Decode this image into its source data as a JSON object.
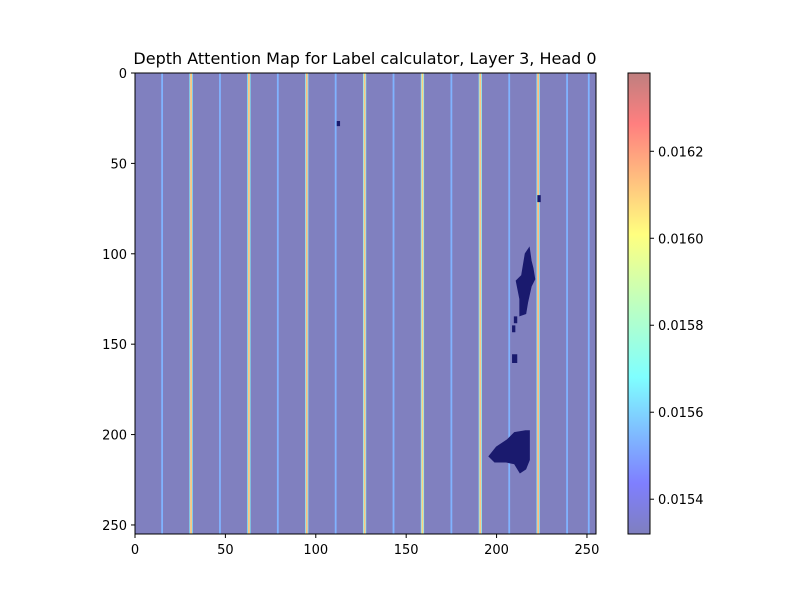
{
  "chart_data": {
    "type": "heatmap",
    "title": "Depth Attention Map for Label calculator, Layer 3, Head 0",
    "xlabel": "",
    "ylabel": "",
    "x_range": [
      0,
      255
    ],
    "y_range": [
      0,
      255
    ],
    "y_axis_direction": "top-to-bottom",
    "x_ticks": [
      "0",
      "50",
      "100",
      "150",
      "200",
      "250"
    ],
    "y_ticks": [
      "0",
      "50",
      "100",
      "150",
      "200",
      "250"
    ],
    "x_tick_values": [
      0,
      50,
      100,
      150,
      200,
      250
    ],
    "y_tick_values": [
      0,
      50,
      100,
      150,
      200,
      250
    ],
    "background_value": 0.01532,
    "vertical_line_columns": [
      {
        "x": 15,
        "value": 0.01556
      },
      {
        "x": 31,
        "value": 0.0161
      },
      {
        "x": 47,
        "value": 0.01556
      },
      {
        "x": 63,
        "value": 0.0161
      },
      {
        "x": 79,
        "value": 0.01556
      },
      {
        "x": 95,
        "value": 0.01612
      },
      {
        "x": 111,
        "value": 0.01556
      },
      {
        "x": 127,
        "value": 0.0161
      },
      {
        "x": 143,
        "value": 0.01556
      },
      {
        "x": 159,
        "value": 0.01608
      },
      {
        "x": 175,
        "value": 0.01556
      },
      {
        "x": 191,
        "value": 0.0161
      },
      {
        "x": 207,
        "value": 0.01556
      },
      {
        "x": 223,
        "value": 0.01612
      },
      {
        "x": 239,
        "value": 0.01556
      },
      {
        "x": 251,
        "value": 0.01556
      }
    ],
    "dark_regions": [
      {
        "description": "blob",
        "points": [
          [
            196,
            212
          ],
          [
            200,
            207
          ],
          [
            206,
            203
          ],
          [
            210,
            199
          ],
          [
            216,
            198
          ],
          [
            218,
            198
          ],
          [
            218,
            214
          ],
          [
            216,
            219
          ],
          [
            213,
            221
          ],
          [
            210,
            216
          ],
          [
            205,
            215
          ],
          [
            199,
            215
          ]
        ]
      },
      {
        "description": "streak",
        "points": [
          [
            214,
            112
          ],
          [
            216,
            100
          ],
          [
            218,
            97
          ],
          [
            219,
            104
          ],
          [
            220,
            108
          ],
          [
            221,
            114
          ],
          [
            219,
            118
          ],
          [
            217,
            127
          ],
          [
            216,
            133
          ],
          [
            213,
            134
          ],
          [
            213,
            125
          ],
          [
            211,
            115
          ]
        ]
      },
      {
        "description": "dot",
        "points": [
          [
            112,
            27
          ],
          [
            113,
            27
          ],
          [
            113,
            29
          ],
          [
            112,
            29
          ]
        ]
      },
      {
        "description": "dot",
        "points": [
          [
            223,
            68
          ],
          [
            224,
            68
          ],
          [
            224,
            71
          ],
          [
            223,
            71
          ]
        ]
      },
      {
        "description": "dot",
        "points": [
          [
            210,
            135
          ],
          [
            211,
            135
          ],
          [
            211,
            138
          ],
          [
            210,
            138
          ]
        ]
      },
      {
        "description": "dot",
        "points": [
          [
            209,
            140
          ],
          [
            210,
            140
          ],
          [
            210,
            143
          ],
          [
            209,
            143
          ]
        ]
      },
      {
        "description": "dot",
        "points": [
          [
            209,
            156
          ],
          [
            211,
            156
          ],
          [
            211,
            160
          ],
          [
            209,
            160
          ]
        ]
      }
    ],
    "colorbar": {
      "colormap": "jet",
      "alpha": 0.5,
      "min": 0.01532,
      "max": 0.01638,
      "tick_values": [
        0.0154,
        0.0156,
        0.0158,
        0.016,
        0.0162
      ],
      "tick_labels": [
        "0.0154",
        "0.0156",
        "0.0158",
        "0.0160",
        "0.0162"
      ]
    },
    "grid": false
  }
}
